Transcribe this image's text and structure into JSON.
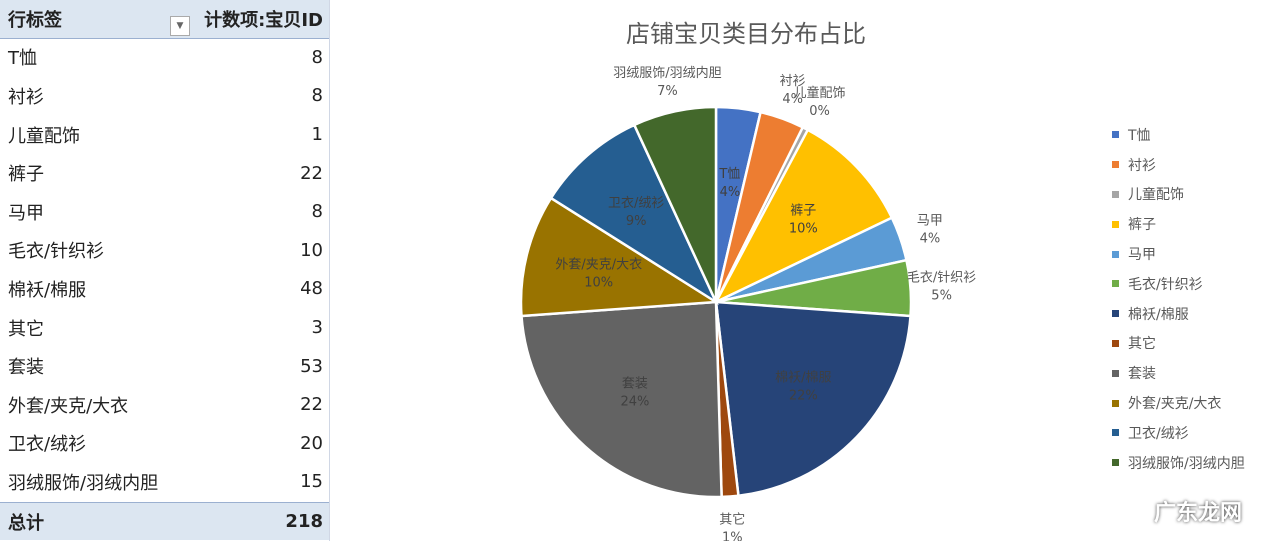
{
  "pivot": {
    "header_label": "行标签",
    "header_value": "计数项:宝贝ID",
    "filter_icon": "dropdown-arrow",
    "rows": [
      {
        "label": "T恤",
        "value": 8
      },
      {
        "label": "衬衫",
        "value": 8
      },
      {
        "label": "儿童配饰",
        "value": 1
      },
      {
        "label": "裤子",
        "value": 22
      },
      {
        "label": "马甲",
        "value": 8
      },
      {
        "label": "毛衣/针织衫",
        "value": 10
      },
      {
        "label": "棉袄/棉服",
        "value": 48
      },
      {
        "label": "其它",
        "value": 3
      },
      {
        "label": "套装",
        "value": 53
      },
      {
        "label": "外套/夹克/大衣",
        "value": 22
      },
      {
        "label": "卫衣/绒衫",
        "value": 20
      },
      {
        "label": "羽绒服饰/羽绒内胆",
        "value": 15
      }
    ],
    "total_label": "总计",
    "total_value": 218
  },
  "chart_data": {
    "type": "pie",
    "title": "店铺宝贝类目分布占比",
    "legend": "right",
    "categories": [
      "T恤",
      "衬衫",
      "儿童配饰",
      "裤子",
      "马甲",
      "毛衣/针织衫",
      "棉袄/棉服",
      "其它",
      "套装",
      "外套/夹克/大衣",
      "卫衣/绒衫",
      "羽绒服饰/羽绒内胆"
    ],
    "values": [
      8,
      8,
      1,
      22,
      8,
      10,
      48,
      3,
      53,
      22,
      20,
      15
    ],
    "percent_labels": [
      "4%",
      "4%",
      "0%",
      "10%",
      "4%",
      "5%",
      "22%",
      "1%",
      "24%",
      "10%",
      "9%",
      "7%"
    ],
    "label_position": [
      "inside",
      "outside",
      "outside",
      "inside",
      "outside",
      "outside",
      "inside",
      "outside",
      "inside",
      "inside",
      "inside",
      "outside"
    ],
    "colors": [
      "#4472C4",
      "#ED7D31",
      "#A5A5A5",
      "#FFC000",
      "#5B9BD5",
      "#70AD47",
      "#264478",
      "#9E480E",
      "#636363",
      "#997300",
      "#255E91",
      "#43682B"
    ]
  },
  "watermark": "广东龙网"
}
